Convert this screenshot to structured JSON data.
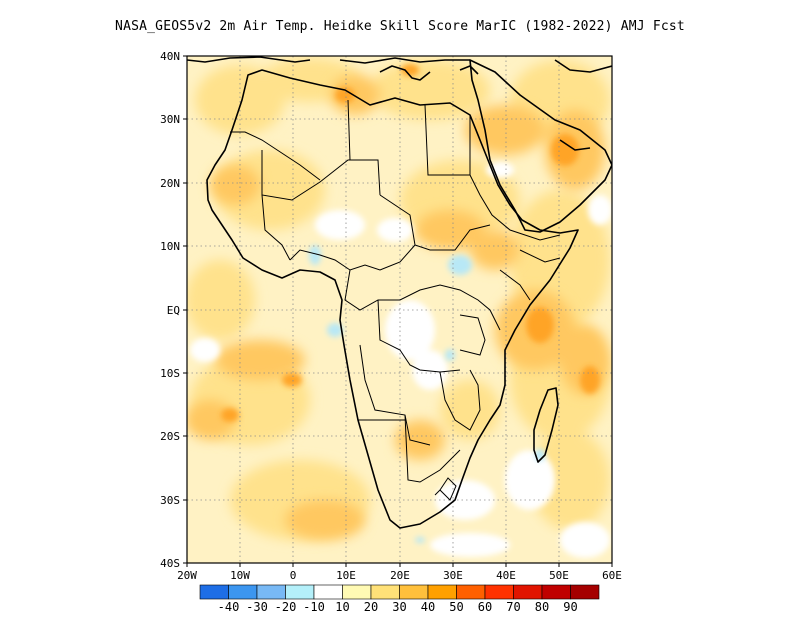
{
  "title": "NASA_GEOS5v2  2m Air Temp. Heidke Skill Score MarIC (1982-2022) AMJ Fcst",
  "map": {
    "lon_range": [
      -20,
      60
    ],
    "lat_range": [
      -40,
      40
    ],
    "gridlines": "dotted",
    "lat_ticks": [
      "40N",
      "30N",
      "20N",
      "10N",
      "EQ",
      "10S",
      "20S",
      "30S",
      "40S"
    ],
    "lon_ticks": [
      "20W",
      "10W",
      "0",
      "10E",
      "20E",
      "30E",
      "40E",
      "50E",
      "60E"
    ]
  },
  "colorbar": {
    "colors": [
      "#1e6ee6",
      "#3c96f0",
      "#78b9f5",
      "#b4f0fa",
      "#ffffff",
      "#fffab4",
      "#ffe178",
      "#ffc03c",
      "#ffa000",
      "#ff6000",
      "#ff3200",
      "#e11400",
      "#c00000",
      "#a50000"
    ],
    "labels": [
      "-40",
      "-30",
      "-20",
      "-10",
      "10",
      "20",
      "30",
      "40",
      "50",
      "60",
      "70",
      "80",
      "90"
    ]
  }
}
